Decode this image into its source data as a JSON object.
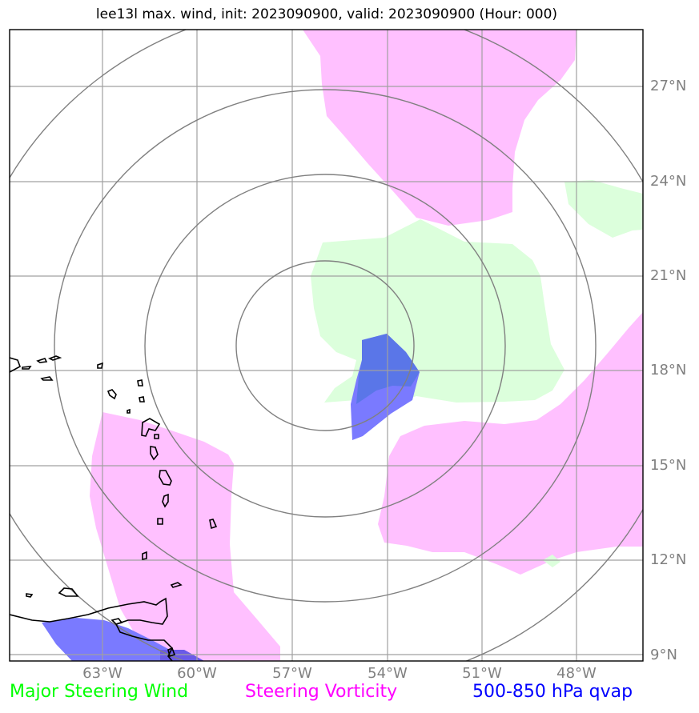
{
  "title": "lee13l max. wind, init: 2023090900, valid: 2023090900 (Hour: 000)",
  "lat_labels": [
    "27°N",
    "24°N",
    "21°N",
    "18°N",
    "15°N",
    "12°N",
    "9°N"
  ],
  "lon_labels": [
    "63°W",
    "60°W",
    "57°W",
    "54°W",
    "51°W",
    "48°W"
  ],
  "legend": {
    "wind": "Major Steering Wind",
    "vorticity": "Steering Vorticity",
    "qvap": "500-850 hPa qvap"
  },
  "colors": {
    "wind": "#00ff00",
    "wind_fill": "#dcffdc",
    "vorticity": "#ff00ff",
    "vorticity_fill": "#ffc0ff",
    "qvap": "#0000ff",
    "qvap_fill": "#7a7aff",
    "grid": "#a0a0a0",
    "rings": "#808080"
  }
}
